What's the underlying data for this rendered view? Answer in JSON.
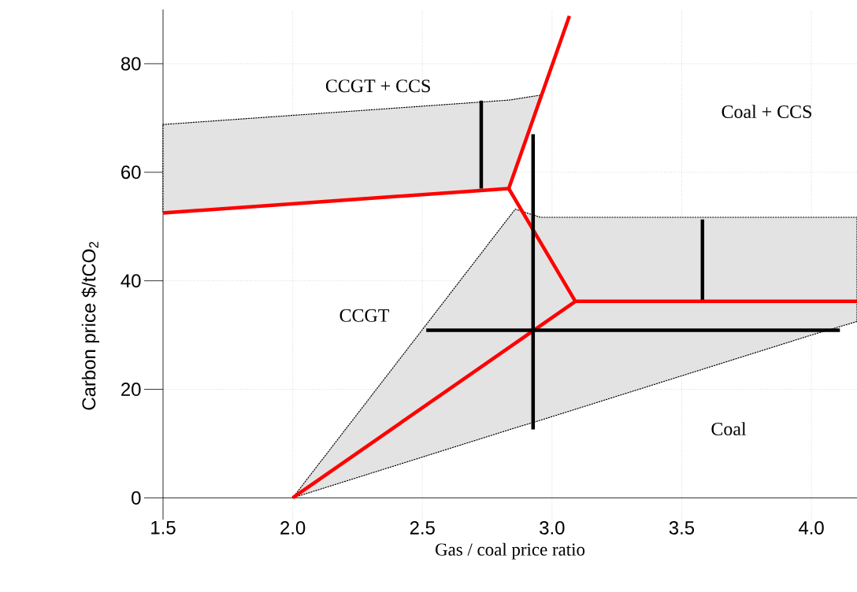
{
  "chart_data": {
    "type": "line",
    "xlabel": "Gas / coal price ratio",
    "ylabel": "Carbon price $/tCO$_{2}$",
    "xlim": [
      1.5,
      4.176
    ],
    "ylim": [
      -4,
      90
    ],
    "xticks": [
      {
        "value": 1.5,
        "label": "1.5"
      },
      {
        "value": 2,
        "label": "2.0"
      },
      {
        "value": 2.5,
        "label": "2.5"
      },
      {
        "value": 3,
        "label": "3.0"
      },
      {
        "value": 3.5,
        "label": "3.5"
      },
      {
        "value": 4,
        "label": "4.0"
      }
    ],
    "yticks": [
      0,
      20,
      40,
      60,
      80
    ],
    "grid": true,
    "series": [
      {
        "type": "area",
        "color": "#e3e3e3",
        "x": [
          1.5,
          2.833,
          2.955
        ],
        "values": [
          null,
          null,
          null
        ],
        "upper": [
          68.8,
          73.3,
          74.2
        ],
        "lower": [
          52.5,
          57,
          74.2
        ]
      },
      {
        "type": "area",
        "color": "#e3e3e3",
        "x": [
          2.0,
          2.858,
          2.955,
          4.0,
          4.176
        ],
        "values": [
          null,
          null,
          null,
          null,
          null
        ],
        "upper": [
          0,
          53.2,
          51.7,
          51.7,
          51.7
        ],
        "lower": [
          0,
          12.9,
          14.3,
          30,
          32.5
        ]
      },
      {
        "color": "#ff0000",
        "x": [
          1.5,
          2.833,
          3.067
        ],
        "values": [
          52.5,
          57,
          88.8
        ]
      },
      {
        "color": "#ff0000",
        "x": [
          2.833,
          3.09,
          4.176
        ],
        "values": [
          57,
          36.2,
          36.2
        ]
      },
      {
        "color": "#ff0000",
        "x": [
          2.0,
          3.09
        ],
        "values": [
          0,
          36.2
        ]
      },
      {
        "color": "#000000",
        "x": [
          2.727,
          2.727
        ],
        "values": [
          73.2,
          57
        ]
      },
      {
        "color": "#000000",
        "x": [
          2.927,
          2.927
        ],
        "values": [
          67,
          12.6
        ]
      },
      {
        "color": "#000000",
        "x": [
          2.515,
          4.11
        ],
        "values": [
          30.9,
          30.9
        ]
      },
      {
        "color": "#000000",
        "x": [
          3.58,
          3.58
        ],
        "values": [
          51.3,
          36.5
        ]
      }
    ],
    "annotations": [
      "CCGT + CCS",
      "Coal + CCS",
      "CCGT",
      "Coal"
    ]
  }
}
